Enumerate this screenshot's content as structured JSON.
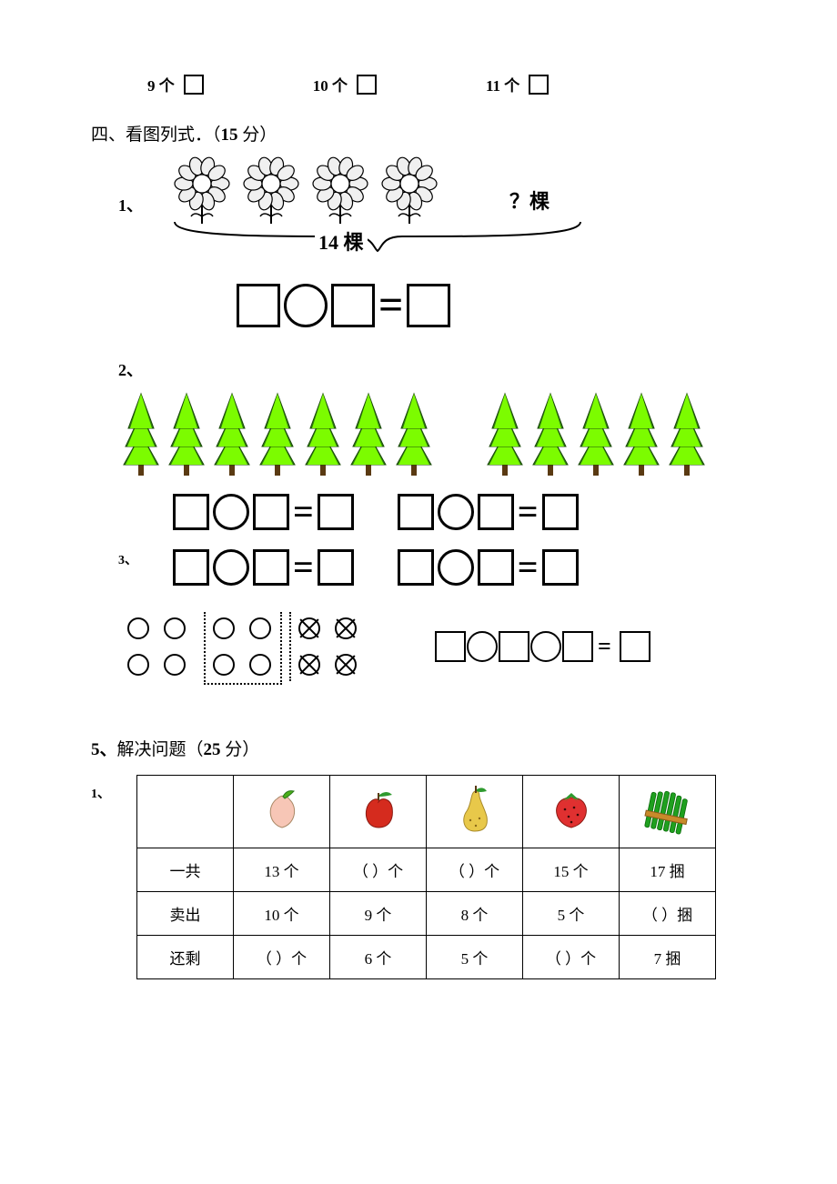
{
  "colors": {
    "page_bg": "#ffffff",
    "text": "#000000",
    "flower_fill": "#f0f0f0",
    "flower_stroke": "#000000",
    "tree_green": "#7cfc00",
    "tree_mid": "#4caf1a",
    "tree_dark": "#2e7d0e",
    "tree_trunk": "#5a3a12",
    "table_border": "#000000",
    "peach": "#f7c6b6",
    "peach_leaf": "#4caf1a",
    "apple": "#d52b1e",
    "apple_leaf": "#2e9a2e",
    "pear": "#e8c84a",
    "pear_leaf": "#2e9a2e",
    "strawberry": "#e03030",
    "strawberry_top": "#2e9a2e",
    "asparagus": "#1fa01f",
    "asparagus_band": "#c88a2a"
  },
  "checkbox_row": {
    "items": [
      "9 个",
      "10 个",
      "11 个"
    ]
  },
  "section4": {
    "title_prefix": "四、看图列式．（",
    "title_bold": "15",
    "title_suffix": " 分）",
    "p1_label": "1、",
    "p1_flower_count": 4,
    "p1_question": "？棵",
    "p1_total": "14 棵",
    "p2_label": "2、",
    "p2_left_count": 7,
    "p2_right_count": 5,
    "p3_label": "3、"
  },
  "section5": {
    "title_prefix": "5、",
    "title_main": "解决问题（",
    "title_bold": "25",
    "title_suffix": " 分）",
    "row_label": "1、",
    "columns": [
      "",
      "peach",
      "apple",
      "pear",
      "strawberry",
      "asparagus"
    ],
    "rows": [
      {
        "label": "一共",
        "cells": [
          "13 个",
          "（  ）个",
          "（  ）个",
          "15 个",
          "17 捆"
        ]
      },
      {
        "label": "卖出",
        "cells": [
          "10 个",
          "9 个",
          "8 个",
          "5 个",
          "（  ）捆"
        ]
      },
      {
        "label": "还剩",
        "cells": [
          "（  ）个",
          "6 个",
          "5 个",
          "（  ）个",
          "7 捆"
        ]
      }
    ]
  }
}
